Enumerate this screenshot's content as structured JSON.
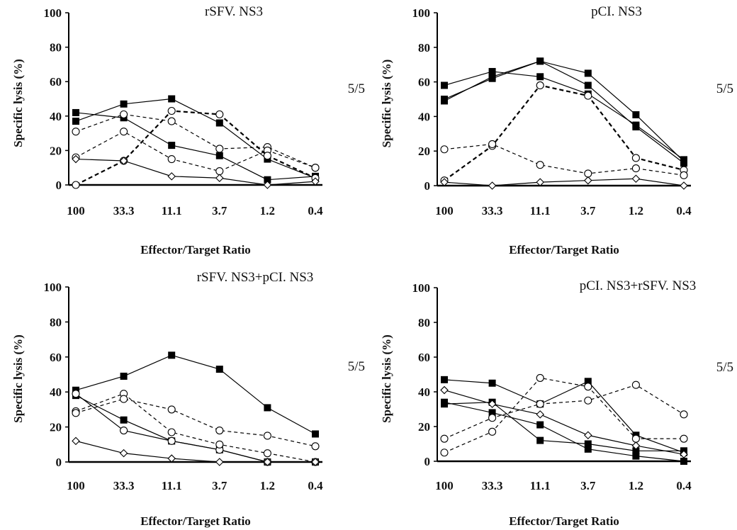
{
  "chart_data": [
    {
      "type": "line",
      "title": "rSFV. NS3",
      "ratio_label": "5/5",
      "xlabel": "Effector/Target Ratio",
      "ylabel": "Specific  lysis (%)",
      "categories": [
        "100",
        "33.3",
        "11.1",
        "3.7",
        "1.2",
        "0.4"
      ],
      "ylim": [
        0,
        100
      ],
      "yticks": [
        0,
        20,
        40,
        60,
        80,
        100
      ],
      "series": [
        {
          "marker": "square",
          "style": "solid",
          "values": [
            42,
            39,
            23,
            17,
            3,
            5
          ]
        },
        {
          "marker": "square",
          "style": "solid",
          "values": [
            37,
            47,
            50,
            36,
            15,
            4
          ]
        },
        {
          "marker": "circle",
          "style": "dashed",
          "values": [
            31,
            41,
            37,
            21,
            22,
            10
          ]
        },
        {
          "marker": "circle",
          "style": "dashed",
          "values": [
            16,
            31,
            15,
            8,
            20,
            10
          ]
        },
        {
          "marker": "circle",
          "style": "dashed-bold",
          "values": [
            0,
            14,
            43,
            41,
            17,
            4
          ]
        },
        {
          "marker": "diamond",
          "style": "solid",
          "values": [
            15,
            14,
            5,
            4,
            0,
            2
          ]
        }
      ]
    },
    {
      "type": "line",
      "title": "pCI. NS3",
      "ratio_label": "5/5",
      "xlabel": "Effector/Target Ratio",
      "ylabel": "Specific  lysis (%)",
      "categories": [
        "100",
        "33.3",
        "11.1",
        "3.7",
        "1.2",
        "0.4"
      ],
      "ylim": [
        0,
        100
      ],
      "yticks": [
        0,
        20,
        40,
        60,
        80,
        100
      ],
      "series": [
        {
          "marker": "square",
          "style": "solid",
          "values": [
            58,
            66,
            63,
            53,
            35,
            15
          ]
        },
        {
          "marker": "square",
          "style": "solid",
          "values": [
            50,
            62,
            72,
            65,
            41,
            14
          ]
        },
        {
          "marker": "square",
          "style": "solid",
          "values": [
            49,
            63,
            72,
            58,
            34,
            13
          ]
        },
        {
          "marker": "circle",
          "style": "dashed-bold",
          "values": [
            3,
            23,
            58,
            52,
            16,
            9
          ]
        },
        {
          "marker": "circle",
          "style": "dashed",
          "values": [
            21,
            24,
            12,
            7,
            10,
            6
          ]
        },
        {
          "marker": "diamond",
          "style": "solid",
          "values": [
            2,
            0,
            2,
            3,
            4,
            0
          ]
        }
      ]
    },
    {
      "type": "line",
      "title": "rSFV. NS3+pCI. NS3",
      "ratio_label": "5/5",
      "xlabel": "Effector/Target Ratio",
      "ylabel": "Specific  lysis (%)",
      "categories": [
        "100",
        "33.3",
        "11.1",
        "3.7",
        "1.2",
        "0.4"
      ],
      "ylim": [
        0,
        100
      ],
      "yticks": [
        0,
        20,
        40,
        60,
        80,
        100
      ],
      "series": [
        {
          "marker": "square",
          "style": "solid",
          "values": [
            41,
            49,
            61,
            53,
            31,
            16
          ]
        },
        {
          "marker": "square",
          "style": "solid",
          "values": [
            38,
            24,
            12,
            7,
            0,
            0
          ]
        },
        {
          "marker": "circle",
          "style": "solid",
          "values": [
            39,
            18,
            12,
            7,
            0,
            0
          ]
        },
        {
          "marker": "circle",
          "style": "dashed",
          "values": [
            29,
            39,
            17,
            10,
            5,
            0
          ]
        },
        {
          "marker": "circle",
          "style": "dashed",
          "values": [
            28,
            36,
            30,
            18,
            15,
            9
          ]
        },
        {
          "marker": "diamond",
          "style": "solid",
          "values": [
            12,
            5,
            2,
            0,
            0,
            0
          ]
        }
      ]
    },
    {
      "type": "line",
      "title": "pCI. NS3+rSFV. NS3",
      "ratio_label": "5/5",
      "xlabel": "Effector/Target Ratio",
      "ylabel": "Specific  lysis (%)",
      "categories": [
        "100",
        "33.3",
        "11.1",
        "3.7",
        "1.2",
        "0.4"
      ],
      "ylim": [
        0,
        100
      ],
      "yticks": [
        0,
        20,
        40,
        60,
        80,
        100
      ],
      "series": [
        {
          "marker": "square",
          "style": "solid",
          "values": [
            47,
            45,
            33,
            46,
            15,
            5
          ]
        },
        {
          "marker": "square",
          "style": "solid",
          "values": [
            34,
            28,
            21,
            7,
            3,
            0
          ]
        },
        {
          "marker": "square",
          "style": "solid",
          "values": [
            33,
            34,
            12,
            10,
            6,
            6
          ]
        },
        {
          "marker": "diamond",
          "style": "solid",
          "values": [
            41,
            33,
            27,
            15,
            9,
            4
          ]
        },
        {
          "marker": "circle",
          "style": "dashed",
          "values": [
            13,
            25,
            33,
            35,
            44,
            27
          ]
        },
        {
          "marker": "circle",
          "style": "dashed",
          "values": [
            5,
            17,
            48,
            43,
            13,
            13
          ]
        }
      ]
    }
  ]
}
